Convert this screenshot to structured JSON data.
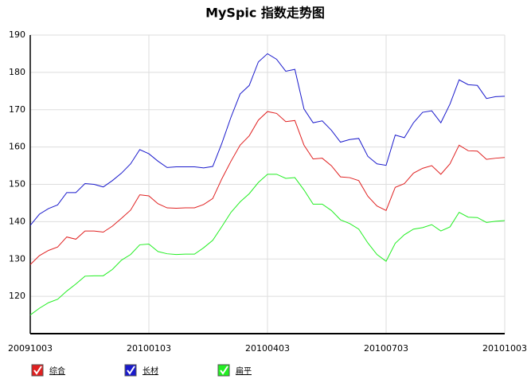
{
  "chart_data": {
    "type": "line",
    "title": "MySpic 指数走势图",
    "categories": [
      "20091003",
      null,
      null,
      null,
      null,
      null,
      null,
      null,
      null,
      null,
      null,
      null,
      null,
      "20100103",
      null,
      null,
      null,
      null,
      null,
      null,
      null,
      null,
      null,
      null,
      null,
      null,
      "20100403",
      null,
      null,
      null,
      null,
      null,
      null,
      null,
      null,
      null,
      null,
      null,
      null,
      "20100703",
      null,
      null,
      null,
      null,
      null,
      null,
      null,
      null,
      null,
      null,
      null,
      null,
      "20101003"
    ],
    "series": [
      {
        "name": "综合",
        "color": "#e02020",
        "values": [
          128.5,
          130.9,
          132.3,
          133.2,
          135.9,
          135.3,
          137.5,
          137.5,
          137.2,
          138.8,
          140.9,
          143.1,
          147.2,
          146.9,
          144.8,
          143.7,
          143.6,
          143.7,
          143.7,
          144.6,
          146.2,
          151.5,
          156.2,
          160.5,
          163,
          167.2,
          169.5,
          169,
          166.8,
          167.1,
          160.5,
          156.8,
          157,
          155,
          152,
          151.8,
          151,
          146.8,
          144.2,
          143,
          149.2,
          150.2,
          153,
          154.3,
          155,
          152.7,
          155.5,
          160.5,
          159,
          158.9,
          156.7,
          157,
          157.2
        ]
      },
      {
        "name": "长材",
        "color": "#1a1acc",
        "values": [
          139,
          142,
          143.5,
          144.5,
          147.8,
          147.8,
          150.2,
          150,
          149.3,
          151,
          153,
          155.5,
          159.3,
          158.2,
          156.2,
          154.5,
          154.7,
          154.7,
          154.7,
          154.4,
          154.8,
          161,
          168,
          174.2,
          176.5,
          182.8,
          185,
          183.5,
          180.3,
          180.8,
          170.2,
          166.5,
          167,
          164.5,
          161.3,
          162,
          162.3,
          157.5,
          155.5,
          155.1,
          163.2,
          162.5,
          166.5,
          169.3,
          169.7,
          166.5,
          171.5,
          178,
          176.7,
          176.5,
          173,
          173.5,
          173.6
        ]
      },
      {
        "name": "扁平",
        "color": "#22ee22",
        "values": [
          115,
          116.8,
          118.3,
          119.2,
          121.4,
          123.3,
          125.4,
          125.5,
          125.5,
          127.2,
          129.7,
          131.2,
          133.8,
          134,
          132,
          131.4,
          131.2,
          131.3,
          131.3,
          133,
          135,
          138.7,
          142.5,
          145.3,
          147.5,
          150.5,
          152.7,
          152.7,
          151.6,
          151.8,
          148.5,
          144.7,
          144.7,
          143,
          140.5,
          139.5,
          138,
          134.3,
          131.2,
          129.4,
          134.2,
          136.5,
          138,
          138.4,
          139.2,
          137.5,
          138.6,
          142.5,
          141.2,
          141.1,
          139.8,
          140.1,
          140.3
        ]
      }
    ],
    "ylim": [
      110,
      190
    ],
    "yticks": [
      120,
      130,
      140,
      150,
      160,
      170,
      180,
      190
    ],
    "grid": true
  }
}
